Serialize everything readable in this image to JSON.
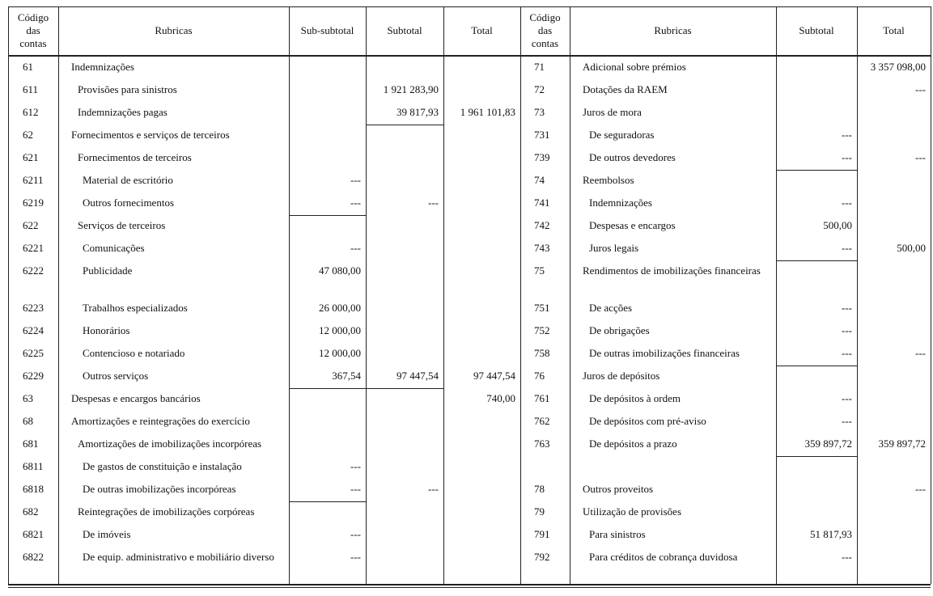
{
  "header": {
    "left": [
      "Código das contas",
      "Rubricas",
      "Sub-subtotal",
      "Subtotal",
      "Total"
    ],
    "right": [
      "Código das contas",
      "Rubricas",
      "Subtotal",
      "Total"
    ]
  },
  "rows": [
    {
      "left": [
        "61",
        "Indemnizações",
        null,
        null,
        null
      ],
      "right": [
        "71",
        "Adicional sobre prémios",
        null,
        "3 357 098,00"
      ]
    },
    {
      "left": [
        "611",
        "Provisões para sinistros",
        null,
        "1 921 283,90",
        null
      ],
      "right": [
        "72",
        "Dotações da RAEM",
        null,
        "---"
      ]
    },
    {
      "left": [
        "612",
        "Indemnizações pagas",
        null,
        "39 817,93",
        "1 961 101,83"
      ],
      "right": [
        "73",
        "Juros de mora",
        null,
        null
      ]
    },
    {
      "left": [
        "62",
        "Fornecimentos e serviços de terceiros",
        null,
        null,
        null
      ],
      "right": [
        "731",
        "De seguradoras",
        "---",
        null
      ]
    },
    {
      "left": [
        "621",
        "Fornecimentos de terceiros",
        null,
        null,
        null
      ],
      "right": [
        "739",
        "De outros devedores",
        "---",
        "---"
      ]
    },
    {
      "left": [
        "6211",
        "Material de escritório",
        "---",
        null,
        null
      ],
      "right": [
        "74",
        "Reembolsos",
        null,
        null
      ]
    },
    {
      "left": [
        "6219",
        "Outros fornecimentos",
        "---",
        "---",
        null
      ],
      "right": [
        "741",
        "Indemnizações",
        "---",
        null
      ]
    },
    {
      "left": [
        "622",
        "Serviços de terceiros",
        null,
        null,
        null
      ],
      "right": [
        "742",
        "Despesas e encargos",
        "500,00",
        null
      ]
    },
    {
      "left": [
        "6221",
        "Comunicações",
        "---",
        null,
        null
      ],
      "right": [
        "743",
        "Juros legais",
        "---",
        "500,00"
      ]
    },
    {
      "left": [
        "6222",
        "Publicidade",
        "47 080,00",
        null,
        null
      ],
      "right": [
        "75",
        "Rendimentos de imobilizações finan­ceiras",
        null,
        null
      ]
    },
    {
      "left": [
        "6223",
        "Trabalhos especializados",
        "26 000,00",
        null,
        null
      ],
      "right": [
        "751",
        "De acções",
        "---",
        null
      ]
    },
    {
      "left": [
        "6224",
        "Honorários",
        "12 000,00",
        null,
        null
      ],
      "right": [
        "752",
        "De obrigações",
        "---",
        null
      ]
    },
    {
      "left": [
        "6225",
        "Contencioso e notariado",
        "12 000,00",
        null,
        null
      ],
      "right": [
        "758",
        "De outras imobilizações financeiras",
        "---",
        "---"
      ]
    },
    {
      "left": [
        "6229",
        "Outros serviços",
        "367,54",
        "97 447,54",
        "97 447,54"
      ],
      "right": [
        "76",
        "Juros de depósitos",
        null,
        null
      ]
    },
    {
      "left": [
        "63",
        "Despesas e encargos bancários",
        null,
        null,
        "740,00"
      ],
      "right": [
        "761",
        "De depósitos à ordem",
        "---",
        null
      ]
    },
    {
      "left": [
        "68",
        "Amortizações e reintegrações do exercício",
        null,
        null,
        null
      ],
      "right": [
        "762",
        "De depósitos com pré-aviso",
        "---",
        null
      ]
    },
    {
      "left": [
        "681",
        "Amortizações de imobilizações incorpóreas",
        null,
        null,
        null
      ],
      "right": [
        "763",
        "De depósitos a prazo",
        "359 897,72",
        "359 897,72"
      ]
    },
    {
      "left": [
        "6811",
        "De gastos de constituição e instalação",
        "---",
        null,
        null
      ],
      "right": null
    },
    {
      "left": [
        "6818",
        "De outras imobilizações incorpóreas",
        "---",
        "---",
        null
      ],
      "right": [
        "78",
        "Outros proveitos",
        null,
        "---"
      ]
    },
    {
      "left": [
        "682",
        "Reintegrações de imobilizações corpóreas",
        null,
        null,
        null
      ],
      "right": [
        "79",
        "Utilização de provisões",
        null,
        null
      ]
    },
    {
      "left": [
        "6821",
        "De imóveis",
        "---",
        null,
        null
      ],
      "right": [
        "791",
        "Para sinistros",
        "51 817,93",
        null
      ]
    },
    {
      "left": [
        "6822",
        "De equip. administrativo e mobiliário diverso",
        "---",
        null,
        null
      ],
      "right": [
        "792",
        "Para créditos de cobrança duvidosa",
        "---",
        null
      ]
    }
  ]
}
